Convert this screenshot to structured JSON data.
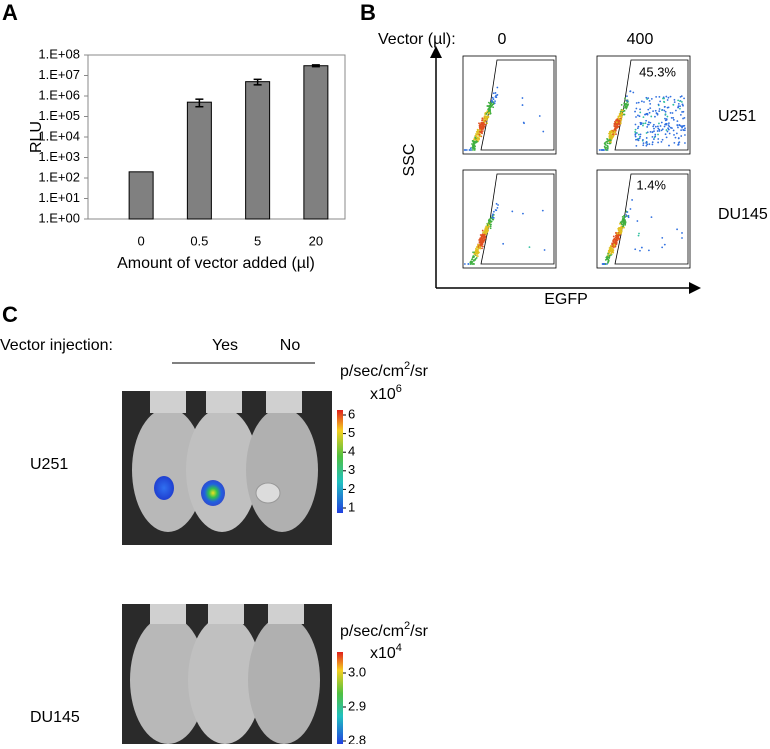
{
  "panels": {
    "a": "A",
    "b": "B",
    "c": "C"
  },
  "chart_data": {
    "type": "bar",
    "categories": [
      "0",
      "0.5",
      "5",
      "20"
    ],
    "values": [
      200,
      500000,
      5000000,
      30000000
    ],
    "errors": [
      null,
      200000,
      1500000,
      3000000
    ],
    "color": "#808080",
    "y_label": "RLU",
    "x_label": "Amount of vector added (µl)",
    "log_scale": true,
    "grid": false,
    "ylim": [
      1,
      100000000
    ],
    "yticks": [
      {
        "value": 1,
        "label": "1.E+00"
      },
      {
        "value": 10,
        "label": "1.E+01"
      },
      {
        "value": 100,
        "label": "1.E+02"
      },
      {
        "value": 1000,
        "label": "1.E+03"
      },
      {
        "value": 10000,
        "label": "1.E+04"
      },
      {
        "value": 100000,
        "label": "1.E+05"
      },
      {
        "value": 1000000,
        "label": "1.E+06"
      },
      {
        "value": 10000000,
        "label": "1.E+07"
      },
      {
        "value": 100000000,
        "label": "1.E+08"
      }
    ]
  },
  "flow": {
    "vector_label": "Vector (µl):",
    "columns": [
      "0",
      "400"
    ],
    "rows": [
      "U251",
      "DU145"
    ],
    "y_axis": "SSC",
    "x_axis": "EGFP",
    "gate_u251": "45.3%",
    "gate_du145": "1.4%"
  },
  "imaging": {
    "label": "Vector injection:",
    "groups": [
      "Yes",
      "No"
    ],
    "rows": [
      {
        "name": "U251",
        "unit_main": "p/sec/cm",
        "unit_exp": "2",
        "unit_tail": "/sr",
        "multiplier": "x10",
        "multiplier_exp": "6",
        "scale_ticks": [
          6,
          5,
          4,
          3,
          2,
          1
        ]
      },
      {
        "name": "DU145",
        "unit_main": "p/sec/cm",
        "unit_exp": "2",
        "unit_tail": "/sr",
        "multiplier": "x10",
        "multiplier_exp": "4",
        "scale_ticks": [
          {
            "value": 3,
            "label": "3.0"
          },
          {
            "value": 2.9,
            "label": "2.9"
          },
          {
            "value": 2.8,
            "label": "2.8"
          }
        ]
      }
    ]
  }
}
